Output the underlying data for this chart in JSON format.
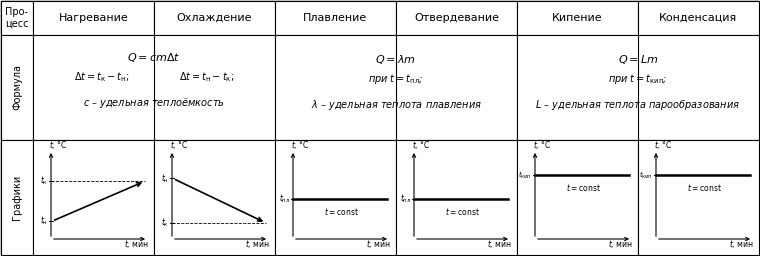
{
  "col_headers": [
    "Нагревание",
    "Охлаждение",
    "Плавление",
    "Отвердевание",
    "Кипение",
    "Конденсация"
  ],
  "bg_color": "#ffffff",
  "border_color": "#000000"
}
